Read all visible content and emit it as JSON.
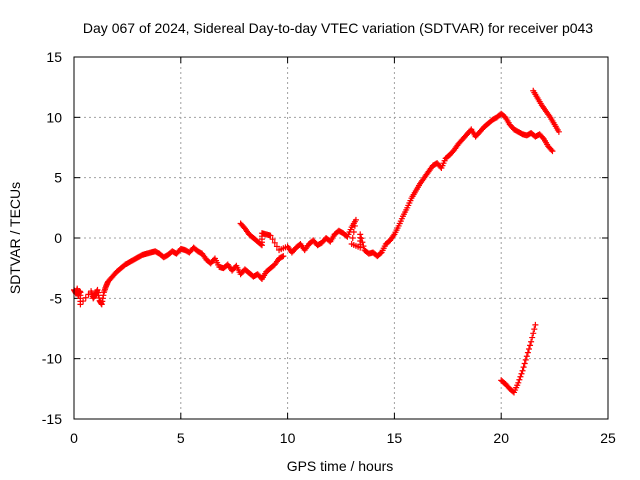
{
  "chart_data": {
    "type": "scatter",
    "title": "Day 067 of 2024, Sidereal Day-to-day VTEC variation (SDTVAR) for receiver p043",
    "xlabel": "GPS time / hours",
    "ylabel": "SDTVAR / TECUs",
    "xlim": [
      0,
      25
    ],
    "ylim": [
      -15,
      15
    ],
    "xticks": [
      0,
      5,
      10,
      15,
      20,
      25
    ],
    "yticks": [
      -15,
      -10,
      -5,
      0,
      5,
      10,
      15
    ],
    "xtick_labels": [
      "0",
      "5",
      "10",
      "15",
      "20",
      "25"
    ],
    "ytick_labels": [
      "-15",
      "-10",
      "-5",
      "0",
      "5",
      "10",
      "15"
    ],
    "grid": true,
    "marker": "+",
    "series": [
      {
        "name": "SDTVAR",
        "color": "#ff0000",
        "points": [
          [
            0.0,
            -4.3
          ],
          [
            0.1,
            -4.6
          ],
          [
            0.15,
            -4.2
          ],
          [
            0.2,
            -4.8
          ],
          [
            0.25,
            -4.4
          ],
          [
            0.3,
            -4.5
          ],
          [
            0.3,
            -5.5
          ],
          [
            0.8,
            -4.4
          ],
          [
            0.9,
            -5.0
          ],
          [
            1.0,
            -4.7
          ],
          [
            1.1,
            -4.3
          ],
          [
            1.2,
            -5.2
          ],
          [
            1.3,
            -5.5
          ],
          [
            1.4,
            -4.5
          ],
          [
            1.5,
            -4.0
          ],
          [
            1.6,
            -3.6
          ],
          [
            1.8,
            -3.2
          ],
          [
            2.0,
            -2.8
          ],
          [
            2.2,
            -2.5
          ],
          [
            2.4,
            -2.2
          ],
          [
            2.6,
            -2.0
          ],
          [
            2.8,
            -1.8
          ],
          [
            3.0,
            -1.6
          ],
          [
            3.2,
            -1.4
          ],
          [
            3.4,
            -1.3
          ],
          [
            3.6,
            -1.2
          ],
          [
            3.8,
            -1.1
          ],
          [
            4.0,
            -1.3
          ],
          [
            4.2,
            -1.6
          ],
          [
            4.4,
            -1.4
          ],
          [
            4.6,
            -1.1
          ],
          [
            4.8,
            -1.3
          ],
          [
            5.0,
            -0.9
          ],
          [
            5.2,
            -1.0
          ],
          [
            5.4,
            -1.2
          ],
          [
            5.6,
            -0.8
          ],
          [
            5.8,
            -1.1
          ],
          [
            6.0,
            -1.3
          ],
          [
            6.2,
            -1.8
          ],
          [
            6.4,
            -2.1
          ],
          [
            6.6,
            -1.7
          ],
          [
            6.8,
            -2.4
          ],
          [
            7.0,
            -2.5
          ],
          [
            7.2,
            -2.2
          ],
          [
            7.4,
            -2.7
          ],
          [
            7.6,
            -2.3
          ],
          [
            7.8,
            -3.0
          ],
          [
            8.0,
            -2.6
          ],
          [
            8.2,
            -2.9
          ],
          [
            8.4,
            -3.2
          ],
          [
            8.6,
            -3.0
          ],
          [
            8.8,
            -3.4
          ],
          [
            9.0,
            -2.8
          ],
          [
            9.2,
            -2.5
          ],
          [
            9.4,
            -2.2
          ],
          [
            9.6,
            -1.7
          ],
          [
            9.8,
            -1.5
          ],
          [
            7.8,
            1.2
          ],
          [
            8.0,
            0.8
          ],
          [
            8.2,
            0.3
          ],
          [
            8.4,
            0.0
          ],
          [
            8.6,
            -0.3
          ],
          [
            8.8,
            -0.6
          ],
          [
            8.8,
            0.4
          ],
          [
            9.0,
            0.3
          ],
          [
            9.2,
            0.2
          ],
          [
            9.6,
            -1.0
          ],
          [
            10.0,
            -0.7
          ],
          [
            10.2,
            -1.2
          ],
          [
            10.4,
            -0.8
          ],
          [
            10.6,
            -0.5
          ],
          [
            10.8,
            -1.0
          ],
          [
            11.0,
            -0.5
          ],
          [
            11.2,
            -0.2
          ],
          [
            11.4,
            -0.6
          ],
          [
            11.6,
            -0.4
          ],
          [
            11.8,
            0.0
          ],
          [
            12.0,
            -0.3
          ],
          [
            12.2,
            0.3
          ],
          [
            12.4,
            0.6
          ],
          [
            12.6,
            0.4
          ],
          [
            12.8,
            0.1
          ],
          [
            13.0,
            0.9
          ],
          [
            13.2,
            1.5
          ],
          [
            13.0,
            -0.5
          ],
          [
            13.4,
            -0.8
          ],
          [
            13.4,
            0.3
          ],
          [
            13.6,
            -1.0
          ],
          [
            13.8,
            -1.3
          ],
          [
            14.0,
            -1.2
          ],
          [
            14.2,
            -1.5
          ],
          [
            14.4,
            -1.2
          ],
          [
            14.6,
            -0.5
          ],
          [
            14.8,
            -0.2
          ],
          [
            15.0,
            0.3
          ],
          [
            15.2,
            1.0
          ],
          [
            15.4,
            1.8
          ],
          [
            15.6,
            2.5
          ],
          [
            15.8,
            3.3
          ],
          [
            16.0,
            3.9
          ],
          [
            16.2,
            4.5
          ],
          [
            16.4,
            5.0
          ],
          [
            16.6,
            5.5
          ],
          [
            16.8,
            6.0
          ],
          [
            17.0,
            6.2
          ],
          [
            17.2,
            5.8
          ],
          [
            17.4,
            6.6
          ],
          [
            17.6,
            6.9
          ],
          [
            17.8,
            7.3
          ],
          [
            18.0,
            7.8
          ],
          [
            18.2,
            8.2
          ],
          [
            18.4,
            8.6
          ],
          [
            18.6,
            9.0
          ],
          [
            18.8,
            8.4
          ],
          [
            19.0,
            8.8
          ],
          [
            19.2,
            9.2
          ],
          [
            19.4,
            9.5
          ],
          [
            19.6,
            9.8
          ],
          [
            19.8,
            10.0
          ],
          [
            20.0,
            10.3
          ],
          [
            20.2,
            10.0
          ],
          [
            20.4,
            9.4
          ],
          [
            20.6,
            9.0
          ],
          [
            20.8,
            8.8
          ],
          [
            21.0,
            8.6
          ],
          [
            21.2,
            8.5
          ],
          [
            21.4,
            8.7
          ],
          [
            21.6,
            8.4
          ],
          [
            21.8,
            8.6
          ],
          [
            22.0,
            8.2
          ],
          [
            22.2,
            7.6
          ],
          [
            22.4,
            7.2
          ],
          [
            21.5,
            12.2
          ],
          [
            21.7,
            11.6
          ],
          [
            21.9,
            11.0
          ],
          [
            22.1,
            10.5
          ],
          [
            22.3,
            10.0
          ],
          [
            22.5,
            9.4
          ],
          [
            22.7,
            8.8
          ],
          [
            20.0,
            -11.8
          ],
          [
            20.2,
            -12.1
          ],
          [
            20.4,
            -12.5
          ],
          [
            20.6,
            -12.8
          ],
          [
            20.8,
            -12.0
          ],
          [
            21.0,
            -11.0
          ],
          [
            21.2,
            -9.8
          ],
          [
            21.4,
            -8.6
          ],
          [
            21.6,
            -7.2
          ]
        ]
      }
    ]
  }
}
